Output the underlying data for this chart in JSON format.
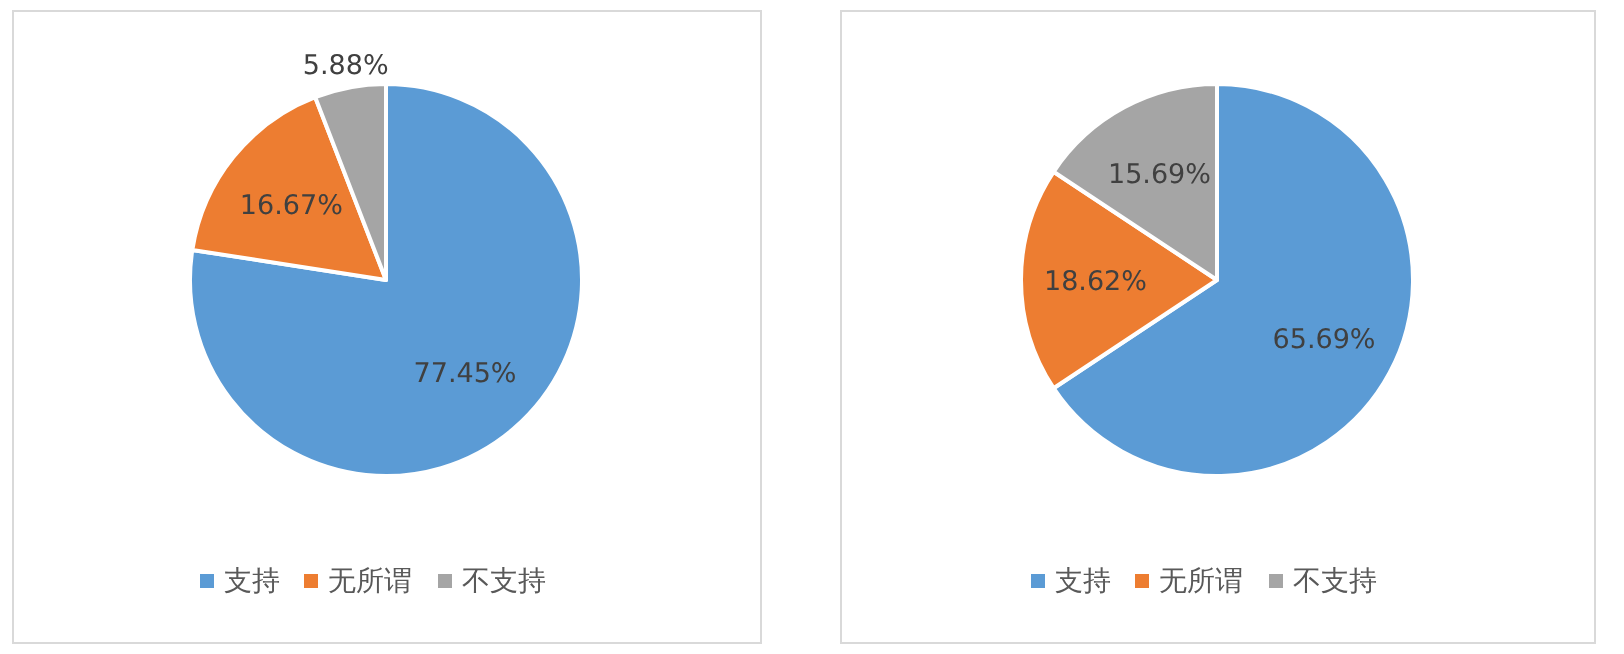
{
  "chart_data": [
    {
      "type": "pie",
      "categories": [
        "支持",
        "无所谓",
        "不支持"
      ],
      "values": [
        77.45,
        16.67,
        5.88
      ],
      "value_labels": [
        "77.45%",
        "16.67%",
        "5.88%"
      ],
      "colors": [
        "#5b9bd5",
        "#ed7d31",
        "#a5a5a5"
      ],
      "legend": "bottom"
    },
    {
      "type": "pie",
      "categories": [
        "支持",
        "无所谓",
        "不支持"
      ],
      "values": [
        65.69,
        18.62,
        15.69
      ],
      "value_labels": [
        "65.69%",
        "18.62%",
        "15.69%"
      ],
      "colors": [
        "#5b9bd5",
        "#ed7d31",
        "#a5a5a5"
      ],
      "legend": "bottom"
    }
  ]
}
